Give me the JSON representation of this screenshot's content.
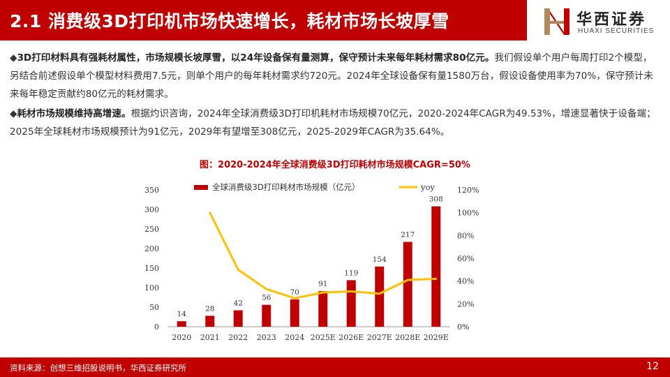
{
  "header": {
    "title": "2.1 消费级3D打印机市场快速增长，耗材市场长坡厚雪"
  },
  "logo": {
    "cn": "华西证券",
    "en": "HUAXI SECURITIES"
  },
  "colors": {
    "brand_red": "#c00000",
    "bar": "#c00000",
    "line": "#ffc000"
  },
  "paragraphs": [
    {
      "bullet": "◆",
      "bold": "3D打印材料具有强耗材属性，市场规模长坡厚雪，以24年设备保有量测算，保守预计未来每年耗材需求80亿元。",
      "text": "我们假设单个用户每周打印2个模型，另结合前述假设单个模型材料费用7.5元，则单个用户的每年耗材需求约720元。2024年全球设备保有量1580万台，假设设备使用率为70%，保守预计未来每年稳定贡献约80亿元的耗材需求。"
    },
    {
      "bullet": "◆",
      "bold": "耗材市场规模维持高增速。",
      "text": "根据灼识咨询，2024年全球消费级3D打印机耗材市场规模70亿元，2020-2024年CAGR为49.53%，增速显著快于设备端；2025年全球耗材市场规模预计为91亿元，2029年有望增至308亿元，2025-2029年CAGR为35.64%。"
    }
  ],
  "chart_data": {
    "type": "bar+line",
    "title": "图：2020-2024年全球消费级3D打印耗材市场规模CAGR=50%",
    "categories": [
      "2020",
      "2021",
      "2022",
      "2023",
      "2024",
      "2025E",
      "2026E",
      "2027E",
      "2028E",
      "2029E"
    ],
    "series": [
      {
        "name": "全球消费级3D打印耗材市场规模（亿元）",
        "type": "bar",
        "axis": "left",
        "values": [
          14,
          28,
          42,
          56,
          70,
          91,
          119,
          154,
          217,
          308
        ]
      },
      {
        "name": "yoy",
        "type": "line",
        "axis": "right",
        "values": [
          null,
          100,
          50,
          33,
          25,
          30,
          31,
          29,
          41,
          42
        ]
      }
    ],
    "left_axis": {
      "ylim": [
        0,
        350
      ],
      "ticks": [
        0,
        50,
        100,
        150,
        200,
        250,
        300,
        350
      ]
    },
    "right_axis": {
      "ylim": [
        0,
        120
      ],
      "ticks": [
        "0%",
        "20%",
        "40%",
        "60%",
        "80%",
        "100%",
        "120%"
      ]
    },
    "legend": "top"
  },
  "footer": {
    "source": "资料来源：创想三维招股说明书，华西证券研究所",
    "page": "12"
  }
}
